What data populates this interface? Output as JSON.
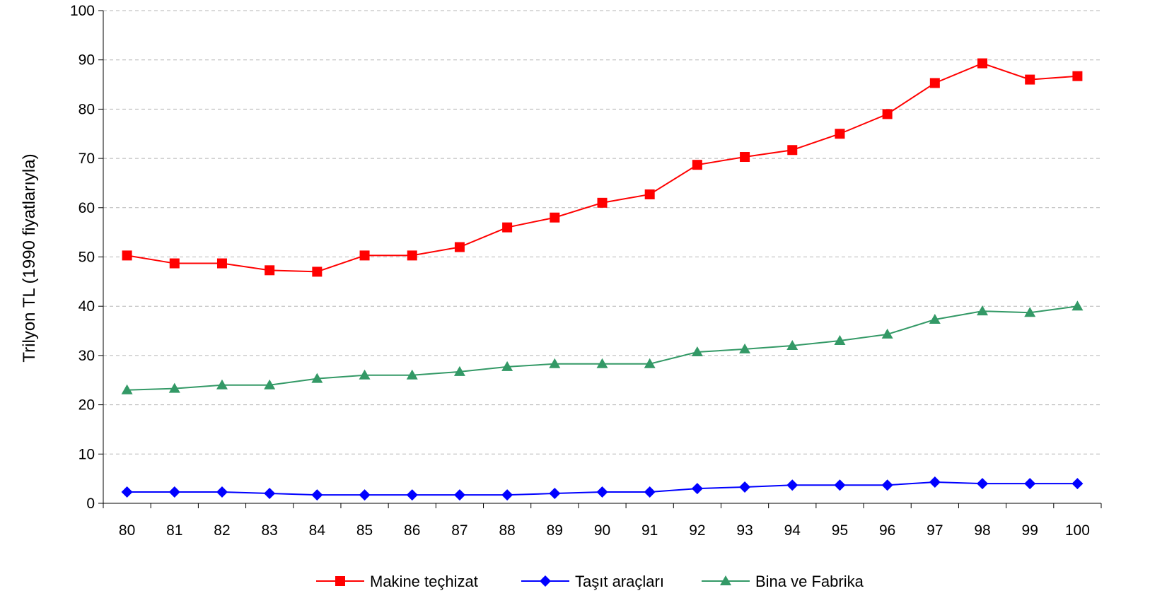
{
  "chart_data": {
    "type": "line",
    "ylabel": "Trilyon TL  (1990 fiyatlarıyla)",
    "xlabel": "",
    "categories": [
      "80",
      "81",
      "82",
      "83",
      "84",
      "85",
      "86",
      "87",
      "88",
      "89",
      "90",
      "91",
      "92",
      "93",
      "94",
      "95",
      "96",
      "97",
      "98",
      "99",
      "100"
    ],
    "ylim": [
      0,
      100
    ],
    "yticks": [
      0,
      10,
      20,
      30,
      40,
      50,
      60,
      70,
      80,
      90,
      100
    ],
    "grid": true,
    "legend_position": "bottom",
    "series": [
      {
        "name": "Makine teçhizat",
        "color": "#ff0000",
        "marker": "square",
        "values": [
          50.3,
          48.7,
          48.7,
          47.3,
          47.0,
          50.3,
          50.3,
          52.0,
          56.0,
          58.0,
          61.0,
          62.7,
          68.7,
          70.3,
          71.7,
          75.0,
          79.0,
          85.3,
          89.3,
          86.0,
          86.7
        ]
      },
      {
        "name": "Taşıt araçları",
        "color": "#0000ff",
        "marker": "diamond",
        "values": [
          2.3,
          2.3,
          2.3,
          2.0,
          1.7,
          1.7,
          1.7,
          1.7,
          1.7,
          2.0,
          2.3,
          2.3,
          3.0,
          3.3,
          3.7,
          3.7,
          3.7,
          4.3,
          4.0,
          4.0,
          4.0
        ]
      },
      {
        "name": "Bina ve Fabrika",
        "color": "#339966",
        "marker": "triangle",
        "values": [
          23.0,
          23.3,
          24.0,
          24.0,
          25.3,
          26.0,
          26.0,
          26.7,
          27.7,
          28.3,
          28.3,
          28.3,
          30.7,
          31.3,
          32.0,
          33.0,
          34.3,
          37.3,
          39.0,
          38.7,
          40.0
        ]
      }
    ]
  }
}
